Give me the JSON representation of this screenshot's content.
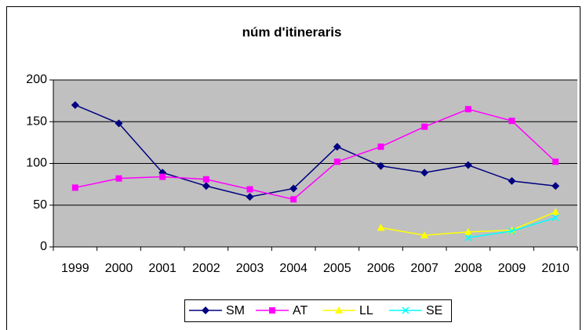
{
  "chart_data": {
    "type": "line",
    "title": "núm d'itineraris",
    "categories": [
      "1999",
      "2000",
      "2001",
      "2002",
      "2003",
      "2004",
      "2005",
      "2006",
      "2007",
      "2008",
      "2009",
      "2010"
    ],
    "series": [
      {
        "name": "SM",
        "color": "#000080",
        "values": [
          170,
          148,
          89,
          73,
          60,
          70,
          120,
          97,
          89,
          98,
          79,
          73
        ]
      },
      {
        "name": "AT",
        "color": "#ff00ff",
        "values": [
          71,
          82,
          84,
          81,
          69,
          57,
          102,
          120,
          144,
          165,
          151,
          102
        ]
      },
      {
        "name": "LL",
        "color": "#ffff00",
        "values": [
          null,
          null,
          null,
          null,
          null,
          null,
          null,
          23,
          14,
          18,
          20,
          42
        ]
      },
      {
        "name": "SE",
        "color": "#00ffff",
        "values": [
          null,
          null,
          null,
          null,
          null,
          null,
          null,
          null,
          null,
          11,
          19,
          35
        ]
      }
    ],
    "ylim": [
      0,
      200
    ],
    "yticks": [
      0,
      50,
      100,
      150,
      200
    ],
    "grid": true,
    "legend": "bottom"
  }
}
